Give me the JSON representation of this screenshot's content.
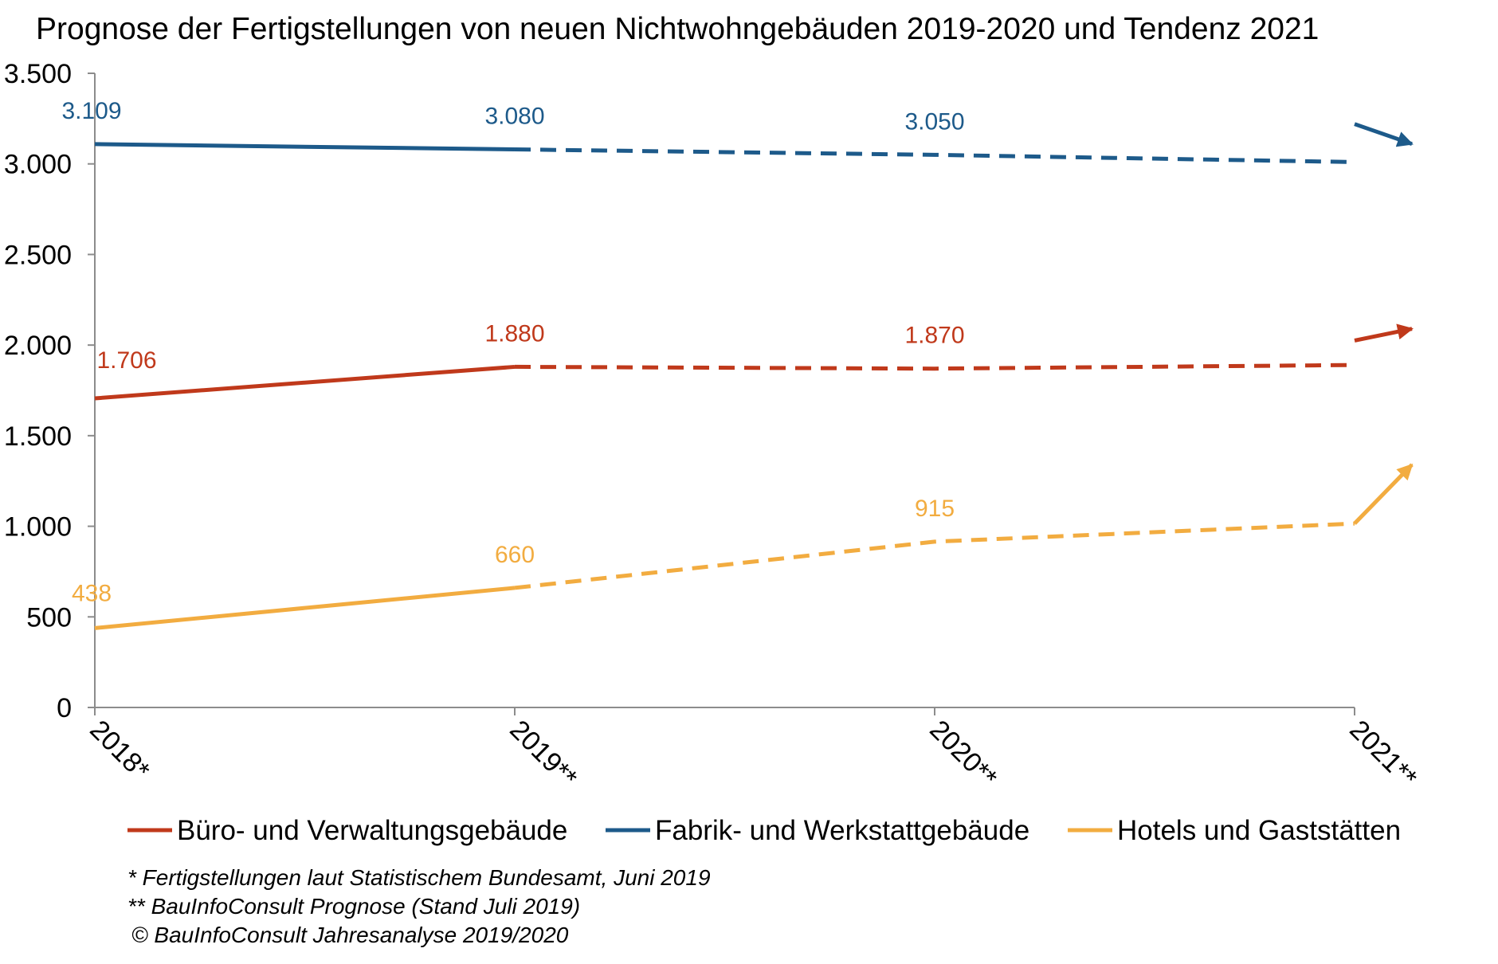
{
  "chart_data": {
    "type": "line",
    "title": "Prognose der Fertigstellungen  von neuen Nichtwohngebäuden  2019-2020 und Tendenz  2021",
    "categories": [
      "2018*",
      "2019**",
      "2020**",
      "2021**"
    ],
    "ylim": [
      0,
      3500
    ],
    "yticks": [
      0,
      500,
      1000,
      1500,
      2000,
      2500,
      3000,
      3500
    ],
    "ytick_labels": [
      "0",
      "500",
      "1.000",
      "1.500",
      "2.000",
      "2.500",
      "3.000",
      "3.500"
    ],
    "grid": false,
    "legend_position": "bottom",
    "solid_until_index": 1,
    "series": [
      {
        "name": "Büro- und Verwaltungsgebäude",
        "color": "#c0391b",
        "values": [
          1706,
          1880,
          1870,
          1890
        ],
        "labels": [
          "1.706",
          "1.880",
          "1.870",
          ""
        ],
        "trend": "up",
        "trend_target": 2090
      },
      {
        "name": "Fabrik- und Werkstattgebäude",
        "color": "#1d5a8a",
        "values": [
          3109,
          3080,
          3050,
          3010
        ],
        "labels": [
          "3.109",
          "3.080",
          "3.050",
          ""
        ],
        "trend": "down",
        "trend_target": 3110
      },
      {
        "name": "Hotels und Gaststätten",
        "color": "#f2ac40",
        "values": [
          438,
          660,
          915,
          1015
        ],
        "labels": [
          "438",
          "660",
          "915",
          ""
        ],
        "trend": "up",
        "trend_target": 1340
      }
    ],
    "notes": [
      "* Fertigstellungen laut Statistischem Bundesamt, Juni 2019",
      "** BauInfoConsult Prognose (Stand Juli 2019)",
      "© BauInfoConsult Jahresanalyse 2019/2020"
    ]
  }
}
